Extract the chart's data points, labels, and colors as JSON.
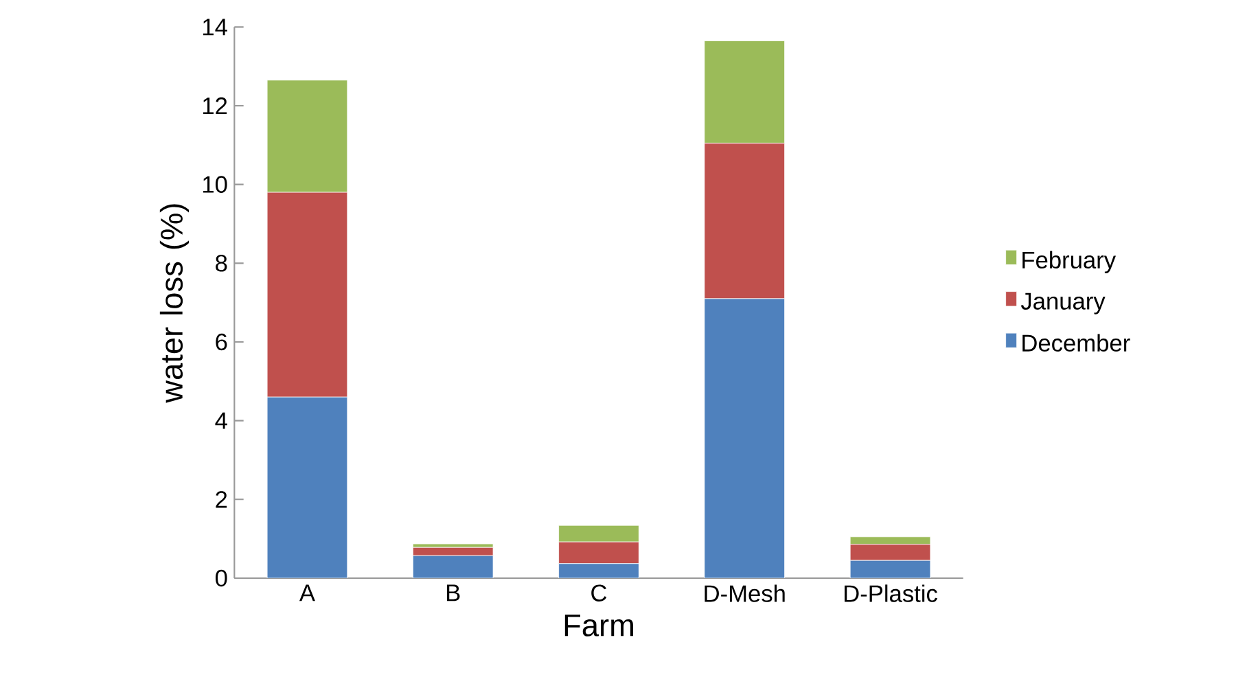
{
  "chart_data": {
    "type": "bar",
    "stacked": true,
    "xlabel": "Farm",
    "ylabel": "water loss (%)",
    "categories": [
      "A",
      "B",
      "C",
      "D-Mesh",
      "D-Plastic"
    ],
    "series": [
      {
        "name": "December",
        "color": "#4f81bd",
        "values": [
          4.6,
          0.57,
          0.37,
          7.1,
          0.45
        ]
      },
      {
        "name": "January",
        "color": "#c0504d",
        "values": [
          5.2,
          0.21,
          0.55,
          3.95,
          0.41
        ]
      },
      {
        "name": "February",
        "color": "#9bbb59",
        "values": [
          2.85,
          0.09,
          0.42,
          2.6,
          0.19
        ]
      }
    ],
    "ylim": [
      0,
      14
    ],
    "yticks": [
      0,
      2,
      4,
      6,
      8,
      10,
      12,
      14
    ],
    "grid": false,
    "legend": "right"
  }
}
